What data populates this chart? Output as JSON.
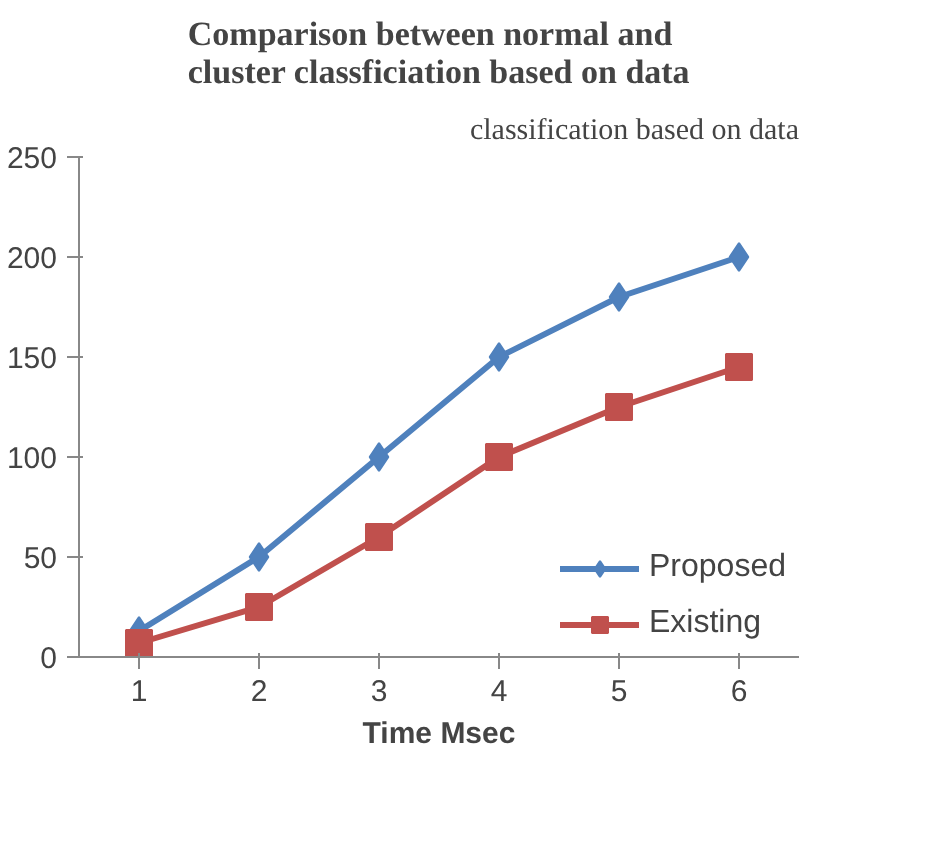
{
  "chart_data": {
    "type": "line",
    "title": "Comparison between normal and\ncluster classficiation based on data",
    "xlabel": "Time Msec",
    "annotations": [
      "classification based on data"
    ],
    "categories": [
      "1",
      "2",
      "3",
      "4",
      "5",
      "6"
    ],
    "series": [
      {
        "name": "Proposed",
        "color": "#4f81bd",
        "marker": "diamond",
        "values": [
          13,
          50,
          100,
          150,
          180,
          200
        ]
      },
      {
        "name": "Existing",
        "color": "#c0504d",
        "marker": "square",
        "values": [
          7,
          25,
          60,
          100,
          125,
          145
        ]
      }
    ],
    "ylim": [
      0,
      250
    ],
    "yticks": [
      0,
      50,
      100,
      150,
      200,
      250
    ],
    "grid": false,
    "legend": "bottom right"
  }
}
